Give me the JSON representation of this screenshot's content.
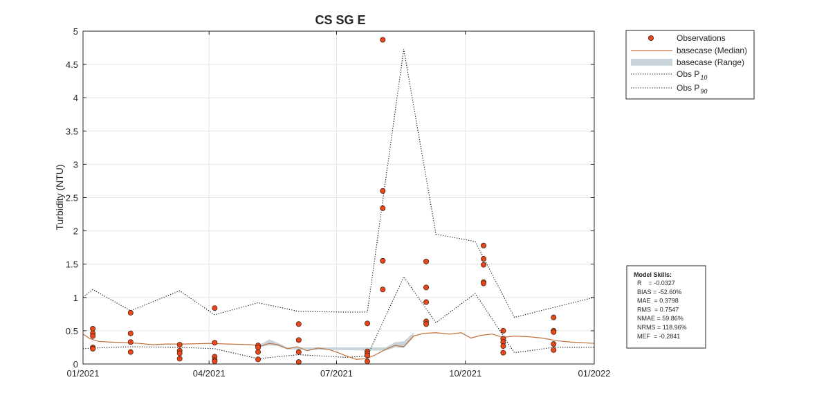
{
  "chart_data": {
    "type": "line",
    "title": "CS SG E",
    "ylabel": "Turbidity (NTU)",
    "xlabel": "",
    "x_axis": {
      "type": "date",
      "range": [
        "2021-01-01",
        "2022-01-01"
      ],
      "ticks": [
        "2021-01-01",
        "2021-04-01",
        "2021-07-01",
        "2021-10-01",
        "2022-01-01"
      ],
      "tick_labels": [
        "01/2021",
        "04/2021",
        "07/2021",
        "10/2021",
        "01/2022"
      ]
    },
    "y_axis": {
      "range": [
        0,
        5
      ],
      "ticks": [
        0,
        0.5,
        1,
        1.5,
        2,
        2.5,
        3,
        3.5,
        4,
        4.5,
        5
      ],
      "tick_labels": [
        "0",
        "0.5",
        "1",
        "1.5",
        "2",
        "2.5",
        "3",
        "3.5",
        "4",
        "4.5",
        "5"
      ]
    },
    "grid": true,
    "legend": {
      "placement": "outside-top-right",
      "entries": [
        {
          "label": "Observations",
          "sub": ""
        },
        {
          "label": "basecase (Median)",
          "sub": ""
        },
        {
          "label": "basecase (Range)",
          "sub": ""
        },
        {
          "label": "Obs P",
          "sub": "10"
        },
        {
          "label": "Obs P",
          "sub": "90"
        }
      ]
    },
    "colors": {
      "observations_fill": "#e8481c",
      "observations_edge": "#4a2010",
      "median": "#c0703a",
      "range": "#c8d4da",
      "percentile": "#000000",
      "grid": "#e6e6e6",
      "axes": "#262626"
    },
    "observations": [
      {
        "x": "2021-01-08",
        "y": 0.53
      },
      {
        "x": "2021-01-08",
        "y": 0.46
      },
      {
        "x": "2021-01-08",
        "y": 0.42
      },
      {
        "x": "2021-01-08",
        "y": 0.25
      },
      {
        "x": "2021-01-08",
        "y": 0.23
      },
      {
        "x": "2021-02-04",
        "y": 0.77
      },
      {
        "x": "2021-02-04",
        "y": 0.46
      },
      {
        "x": "2021-02-04",
        "y": 0.33
      },
      {
        "x": "2021-02-04",
        "y": 0.18
      },
      {
        "x": "2021-03-11",
        "y": 0.29
      },
      {
        "x": "2021-03-11",
        "y": 0.2
      },
      {
        "x": "2021-03-11",
        "y": 0.16
      },
      {
        "x": "2021-03-11",
        "y": 0.08
      },
      {
        "x": "2021-04-05",
        "y": 0.84
      },
      {
        "x": "2021-04-05",
        "y": 0.32
      },
      {
        "x": "2021-04-05",
        "y": 0.11
      },
      {
        "x": "2021-04-05",
        "y": 0.06
      },
      {
        "x": "2021-04-05",
        "y": 0.04
      },
      {
        "x": "2021-05-06",
        "y": 0.28
      },
      {
        "x": "2021-05-06",
        "y": 0.25
      },
      {
        "x": "2021-05-06",
        "y": 0.18
      },
      {
        "x": "2021-05-06",
        "y": 0.07
      },
      {
        "x": "2021-06-04",
        "y": 0.6
      },
      {
        "x": "2021-06-04",
        "y": 0.36
      },
      {
        "x": "2021-06-04",
        "y": 0.18
      },
      {
        "x": "2021-06-04",
        "y": 0.03
      },
      {
        "x": "2021-07-23",
        "y": 0.61
      },
      {
        "x": "2021-07-23",
        "y": 0.19
      },
      {
        "x": "2021-07-23",
        "y": 0.16
      },
      {
        "x": "2021-07-23",
        "y": 0.13
      },
      {
        "x": "2021-07-23",
        "y": 0.04
      },
      {
        "x": "2021-08-03",
        "y": 4.87
      },
      {
        "x": "2021-08-03",
        "y": 2.6
      },
      {
        "x": "2021-08-03",
        "y": 2.34
      },
      {
        "x": "2021-08-03",
        "y": 1.55
      },
      {
        "x": "2021-08-03",
        "y": 1.12
      },
      {
        "x": "2021-09-03",
        "y": 1.54
      },
      {
        "x": "2021-09-03",
        "y": 1.15
      },
      {
        "x": "2021-09-03",
        "y": 0.93
      },
      {
        "x": "2021-09-03",
        "y": 0.64
      },
      {
        "x": "2021-09-03",
        "y": 0.6
      },
      {
        "x": "2021-10-14",
        "y": 1.78
      },
      {
        "x": "2021-10-14",
        "y": 1.58
      },
      {
        "x": "2021-10-14",
        "y": 1.49
      },
      {
        "x": "2021-10-14",
        "y": 1.23
      },
      {
        "x": "2021-10-14",
        "y": 1.21
      },
      {
        "x": "2021-10-28",
        "y": 0.5
      },
      {
        "x": "2021-10-28",
        "y": 0.38
      },
      {
        "x": "2021-10-28",
        "y": 0.33
      },
      {
        "x": "2021-10-28",
        "y": 0.27
      },
      {
        "x": "2021-10-28",
        "y": 0.17
      },
      {
        "x": "2021-12-03",
        "y": 0.7
      },
      {
        "x": "2021-12-03",
        "y": 0.5
      },
      {
        "x": "2021-12-03",
        "y": 0.48
      },
      {
        "x": "2021-12-03",
        "y": 0.3
      },
      {
        "x": "2021-12-03",
        "y": 0.21
      }
    ],
    "obs_p10": [
      {
        "x": "2021-01-01",
        "y": 0.23
      },
      {
        "x": "2021-01-08",
        "y": 0.24
      },
      {
        "x": "2021-02-04",
        "y": 0.26
      },
      {
        "x": "2021-03-11",
        "y": 0.25
      },
      {
        "x": "2021-04-05",
        "y": 0.23
      },
      {
        "x": "2021-05-06",
        "y": 0.08
      },
      {
        "x": "2021-06-04",
        "y": 0.14
      },
      {
        "x": "2021-07-08",
        "y": 0.1
      },
      {
        "x": "2021-07-23",
        "y": 0.12
      },
      {
        "x": "2021-08-18",
        "y": 1.31
      },
      {
        "x": "2021-09-10",
        "y": 0.62
      },
      {
        "x": "2021-10-08",
        "y": 1.06
      },
      {
        "x": "2021-11-05",
        "y": 0.17
      },
      {
        "x": "2021-12-03",
        "y": 0.25
      },
      {
        "x": "2022-01-01",
        "y": 0.25
      }
    ],
    "obs_p90": [
      {
        "x": "2021-01-01",
        "y": 1.0
      },
      {
        "x": "2021-01-08",
        "y": 1.12
      },
      {
        "x": "2021-02-04",
        "y": 0.8
      },
      {
        "x": "2021-03-11",
        "y": 1.1
      },
      {
        "x": "2021-04-05",
        "y": 0.74
      },
      {
        "x": "2021-05-06",
        "y": 0.92
      },
      {
        "x": "2021-06-04",
        "y": 0.79
      },
      {
        "x": "2021-07-08",
        "y": 0.78
      },
      {
        "x": "2021-07-23",
        "y": 0.78
      },
      {
        "x": "2021-08-18",
        "y": 4.73
      },
      {
        "x": "2021-09-10",
        "y": 1.95
      },
      {
        "x": "2021-10-08",
        "y": 1.84
      },
      {
        "x": "2021-11-05",
        "y": 0.7
      },
      {
        "x": "2021-12-03",
        "y": 0.85
      },
      {
        "x": "2022-01-01",
        "y": 1.0
      }
    ],
    "median": [
      {
        "x": "2021-01-01",
        "y": 0.45
      },
      {
        "x": "2021-01-06",
        "y": 0.38
      },
      {
        "x": "2021-01-12",
        "y": 0.34
      },
      {
        "x": "2021-01-20",
        "y": 0.33
      },
      {
        "x": "2021-02-01",
        "y": 0.32
      },
      {
        "x": "2021-02-10",
        "y": 0.31
      },
      {
        "x": "2021-02-20",
        "y": 0.29
      },
      {
        "x": "2021-03-01",
        "y": 0.3
      },
      {
        "x": "2021-03-15",
        "y": 0.3
      },
      {
        "x": "2021-04-01",
        "y": 0.31
      },
      {
        "x": "2021-04-15",
        "y": 0.3
      },
      {
        "x": "2021-05-01",
        "y": 0.29
      },
      {
        "x": "2021-05-08",
        "y": 0.27
      },
      {
        "x": "2021-05-14",
        "y": 0.31
      },
      {
        "x": "2021-05-20",
        "y": 0.29
      },
      {
        "x": "2021-05-27",
        "y": 0.23
      },
      {
        "x": "2021-06-03",
        "y": 0.26
      },
      {
        "x": "2021-06-10",
        "y": 0.2
      },
      {
        "x": "2021-06-18",
        "y": 0.24
      },
      {
        "x": "2021-06-25",
        "y": 0.22
      },
      {
        "x": "2021-07-01",
        "y": 0.18
      },
      {
        "x": "2021-07-08",
        "y": 0.12
      },
      {
        "x": "2021-07-15",
        "y": 0.07
      },
      {
        "x": "2021-07-22",
        "y": 0.08
      },
      {
        "x": "2021-07-28",
        "y": 0.13
      },
      {
        "x": "2021-08-05",
        "y": 0.22
      },
      {
        "x": "2021-08-12",
        "y": 0.28
      },
      {
        "x": "2021-08-18",
        "y": 0.26
      },
      {
        "x": "2021-08-25",
        "y": 0.42
      },
      {
        "x": "2021-09-01",
        "y": 0.46
      },
      {
        "x": "2021-09-10",
        "y": 0.47
      },
      {
        "x": "2021-09-20",
        "y": 0.45
      },
      {
        "x": "2021-09-28",
        "y": 0.47
      },
      {
        "x": "2021-10-05",
        "y": 0.39
      },
      {
        "x": "2021-10-12",
        "y": 0.43
      },
      {
        "x": "2021-10-20",
        "y": 0.45
      },
      {
        "x": "2021-10-28",
        "y": 0.4
      },
      {
        "x": "2021-11-05",
        "y": 0.42
      },
      {
        "x": "2021-11-15",
        "y": 0.41
      },
      {
        "x": "2021-11-25",
        "y": 0.39
      },
      {
        "x": "2021-12-05",
        "y": 0.35
      },
      {
        "x": "2021-12-15",
        "y": 0.33
      },
      {
        "x": "2022-01-01",
        "y": 0.31
      }
    ],
    "range_band": [
      {
        "x": "2021-05-08",
        "lo": 0.26,
        "hi": 0.3
      },
      {
        "x": "2021-05-14",
        "lo": 0.28,
        "hi": 0.37
      },
      {
        "x": "2021-05-20",
        "lo": 0.27,
        "hi": 0.32
      },
      {
        "x": "2021-05-27",
        "lo": 0.22,
        "hi": 0.25
      },
      {
        "x": "2021-08-05",
        "lo": 0.2,
        "hi": 0.25
      },
      {
        "x": "2021-08-12",
        "lo": 0.25,
        "hi": 0.33
      },
      {
        "x": "2021-08-18",
        "lo": 0.24,
        "hi": 0.34
      },
      {
        "x": "2021-08-25",
        "lo": 0.4,
        "hi": 0.47
      }
    ],
    "model_skills": {
      "title": "Model Skills:",
      "lines": [
        "R    = -0.0327",
        "BIAS = -52.60%",
        "MAE  = 0.3798",
        "RMS  = 0.7547",
        "NMAE = 59.86%",
        "NRMS = 118.96%",
        "MEF  = -0.2841"
      ]
    }
  }
}
